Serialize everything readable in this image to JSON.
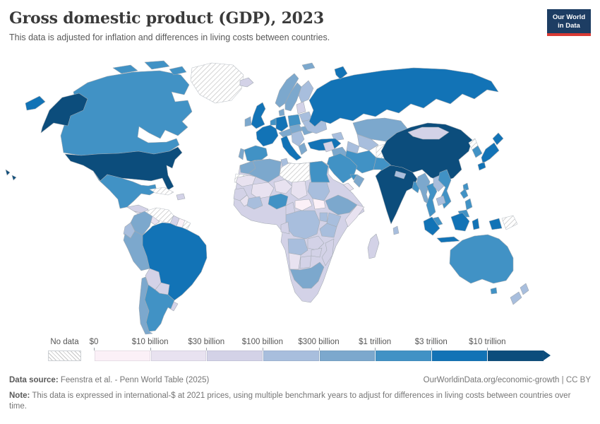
{
  "header": {
    "title": "Gross domestic product (GDP), 2023",
    "subtitle": "This data is adjusted for inflation and differences in living costs between countries.",
    "logo": {
      "line1": "Our World",
      "line2": "in Data",
      "bg_color": "#1d3d63",
      "accent_color": "#d93a34"
    }
  },
  "legend": {
    "no_data_label": "No data",
    "tick_labels": [
      "$0",
      "$10 billion",
      "$30 billion",
      "$100 billion",
      "$300 billion",
      "$1 trillion",
      "$3 trillion",
      "$10 trillion"
    ],
    "colors": [
      "#fbf0f7",
      "#e8e2f0",
      "#d3d2e7",
      "#a8bedd",
      "#7ca8cd",
      "#4192c5",
      "#1273b6",
      "#0c4d7c"
    ]
  },
  "footer": {
    "source_label": "Data source:",
    "source_text": " Feenstra et al. - Penn World Table (2025)",
    "link_text": "OurWorldinData.org/economic-growth",
    "separator": " | ",
    "license_text": "CC BY",
    "note_label": "Note:",
    "note_text": " This data is expressed in international-$ at 2021 prices, using multiple benchmark years to adjust for differences in living costs between countries over time."
  },
  "chart_data": {
    "type": "heatmap",
    "subtype": "world-choropleth",
    "title": "Gross domestic product (GDP), 2023",
    "unit": "international-$ at 2021 prices",
    "legend_position": "bottom",
    "bin_thresholds": [
      "$0",
      "$10 billion",
      "$30 billion",
      "$100 billion",
      "$300 billion",
      "$1 trillion",
      "$3 trillion",
      "$10 trillion"
    ],
    "bin_labels": [
      "$0–$10B",
      "$10B–$30B",
      "$30B–$100B",
      "$100B–$300B",
      "$300B–$1T",
      "$1T–$3T",
      "$3T–$10T",
      "$10T+"
    ],
    "bin_colors": [
      "#fbf0f7",
      "#e8e2f0",
      "#d3d2e7",
      "#a8bedd",
      "#7ca8cd",
      "#4192c5",
      "#1273b6",
      "#0c4d7c"
    ],
    "no_data_pattern": "diagonal-hatch",
    "regions": {
      "united-states": 7,
      "canada": 5,
      "greenland": "no_data",
      "mexico": 5,
      "guatemala-honduras": 2,
      "nicaragua-panama": 1,
      "cuba": "no_data",
      "hispaniola": 2,
      "colombia": 4,
      "venezuela": "no_data",
      "guyana": 2,
      "suriname": 0,
      "french-guiana": "no_data",
      "ecuador": 3,
      "peru": 4,
      "brazil": 6,
      "bolivia": 2,
      "paraguay": 2,
      "uruguay": 2,
      "argentina": 5,
      "chile": 4,
      "iceland": 2,
      "united-kingdom": 6,
      "ireland": 4,
      "norway": 4,
      "sweden": 4,
      "finland": 3,
      "denmark": 4,
      "germany": 6,
      "benelux": 5,
      "france": 6,
      "spain": 5,
      "portugal": 4,
      "italy": 6,
      "switzerland-austria": 4,
      "poland": 5,
      "czech-hungary": 4,
      "balkans": 3,
      "greece": 4,
      "romania": 4,
      "baltics": 2,
      "belarus": 3,
      "ukraine": 3,
      "caucasus": 3,
      "turkey": 6,
      "russia": 6,
      "morocco": 4,
      "western-sahara": "no_data",
      "algeria": 4,
      "tunisia": 3,
      "libya": "no_data",
      "egypt": 5,
      "mauritania": 1,
      "mali": 1,
      "niger": 1,
      "chad": 1,
      "sudan": 3,
      "senegal-guinea": 2,
      "sierra-leone-liberia": 1,
      "cote-divoire-ghana": 3,
      "nigeria": 5,
      "cameroon": 2,
      "central-african-republic": 0,
      "south-sudan": 0,
      "ethiopia": 4,
      "somalia": 1,
      "kenya": 3,
      "uganda": 3,
      "drc": 3,
      "tanzania": 3,
      "gabon-congo": 2,
      "angola": 3,
      "zambia": 2,
      "mozambique": 2,
      "zimbabwe": 2,
      "namibia": 1,
      "botswana": 2,
      "south-africa": 4,
      "madagascar": 2,
      "africa-other": 2,
      "syria-levant": 2,
      "iraq": 4,
      "saudi-arabia": 5,
      "yemen": 1,
      "oman": 4,
      "uae-qatar": 5,
      "iran": 5,
      "afghanistan": "no_data",
      "pakistan": 5,
      "kazakhstan": 4,
      "uzbekistan": 3,
      "turkmenistan": 3,
      "kyrgyzstan-tajikistan": 1,
      "india": 7,
      "nepal": 3,
      "bangladesh": 5,
      "sri-lanka": 3,
      "myanmar": 4,
      "thailand": 5,
      "laos": 3,
      "vietnam": 5,
      "cambodia": 3,
      "malaysia": 5,
      "china": 7,
      "mongolia": 2,
      "north-korea": "no_data",
      "south-korea": 5,
      "japan": 6,
      "taiwan": 5,
      "philippines": 5,
      "indonesia": 6,
      "papua-new-guinea": "no_data",
      "australia": 5,
      "new-zealand": 3
    }
  }
}
